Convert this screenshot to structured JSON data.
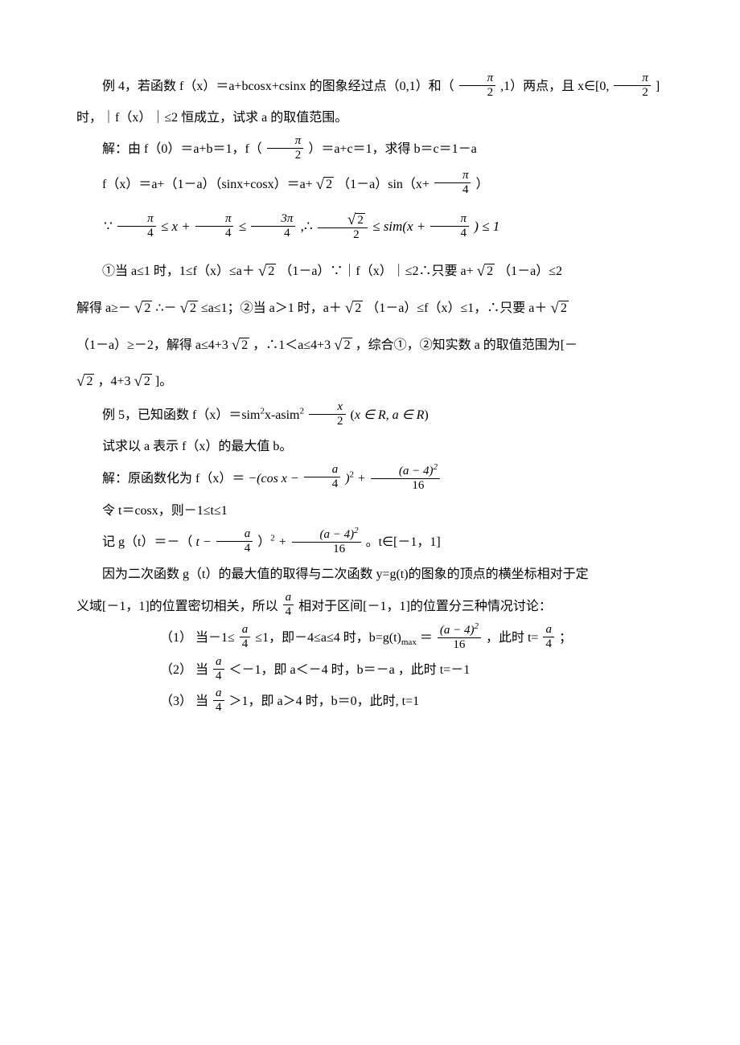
{
  "colors": {
    "text": "#000000",
    "background": "#ffffff",
    "rule": "#000000"
  },
  "typography": {
    "body_font": "SimSun / 宋体",
    "math_font": "Times New Roman italic",
    "base_size_pt": 12,
    "line_height": 2.2
  },
  "ex4_lead_a": "例 4，若函数 f（x）＝a+bcosx+csinx 的图象经过点（0,1）和（",
  "ex4_lead_b": ",1）两点，且 x∈[0,",
  "ex4_lead_c": "]",
  "pi": "π",
  "two": "2",
  "ex4_l2": "时，｜f（x）｜≤2 恒成立，试求 a 的取值范围。",
  "ex4_s1a": "解：由 f（0）＝a+b＝1，f（",
  "ex4_s1b": "）＝a+c＝1，求得 b＝c＝1－a",
  "ex4_s2a": "f（x）＝a+（1－a）（sinx+cosx）＝a+",
  "rt2": "2",
  "ex4_s2b": "（1－a）sin（x+",
  "four": "4",
  "ex4_s2c": "）",
  "ex4_bnd_a": "∵",
  "ex4_bnd_b": "≤",
  "ex4_bnd_plus": "x +",
  "three_pi": "3π",
  "ex4_bnd_c": ",∴",
  "ex4_bnd_d": "≤ sim(x +",
  "ex4_bnd_e": ") ≤ 1",
  "ex4_c1a": "①当 a≤1 时，1≤f（x）≤a＋",
  "ex4_c1b": "（1－a）∵｜f（x）｜≤2∴只要 a+",
  "ex4_c1c": "（1－a）≤2",
  "ex4_c1d_a": "解得 a≥－",
  "ex4_c1d_b": " ∴－",
  "ex4_c1d_c": " ≤a≤1；②当 a＞1 时，a＋",
  "ex4_c1d_d": "（1－a）≤f（x）≤1，∴只要 a＋",
  "ex4_c1e_a": "（1－a）≥－2，解得 a≤4+3",
  "ex4_c1e_b": " ，∴1＜a≤4+3",
  "ex4_c1e_c": " ，综合①，②知实数 a 的取值范围为[－",
  "ex4_c1f_a": " ，4+3",
  "ex4_c1f_b": " ]。",
  "ex5_lead_a": "例 5，已知函数 f（x）＝sim",
  "sq": "2",
  "ex5_lead_b": "x-asim",
  "x": "x",
  "ex5_lead_c": "    (",
  "ex5_dom": "x ∈ R, a ∈ R",
  "ex5_lead_d": ")",
  "ex5_q": "试求以 a 表示 f（x）的最大值 b。",
  "ex5_s1a": "解：原函数化为 f（x）＝",
  "ex5_neg_a": "−(cos x −",
  "a": "a",
  "ex5_neg_b": ")",
  "ex5_plus": " +",
  "a_minus4_sq": "(a − 4)",
  "sixteen": "16",
  "ex5_t": "令 t＝cosx，则－1≤t≤1",
  "ex5_g_a": "记 g（t）＝－（",
  "t_minus": "t −",
  "ex5_g_b": "）",
  "ex5_g_c": " 。t∈[－1，1]",
  "ex5_p1": "因为二次函数 g（t）的最大值的取得与二次函数 y=g(t)的图象的顶点的横坐标相对于定",
  "ex5_p2a": "义域[－1，1]的位置密切相关，所以",
  "ex5_p2b": "相对于区间[－1，1]的位置分三种情况讨论：",
  "case1_a": "（1）    当－1≤",
  "case1_b": "≤1，即－4≤a≤4 时，b=g(t)",
  "max": "max",
  "case1_c": "＝",
  "case1_d": " ，此时 t=",
  "case1_e": " ；",
  "case2_a": "（2）    当",
  "case2_b": "＜－1，即 a＜－4 时，b＝－a ，此时  t=－1",
  "case3_a": "（3）    当",
  "case3_b": "＞1，即 a＞4 时，b＝0，此时, t=1"
}
